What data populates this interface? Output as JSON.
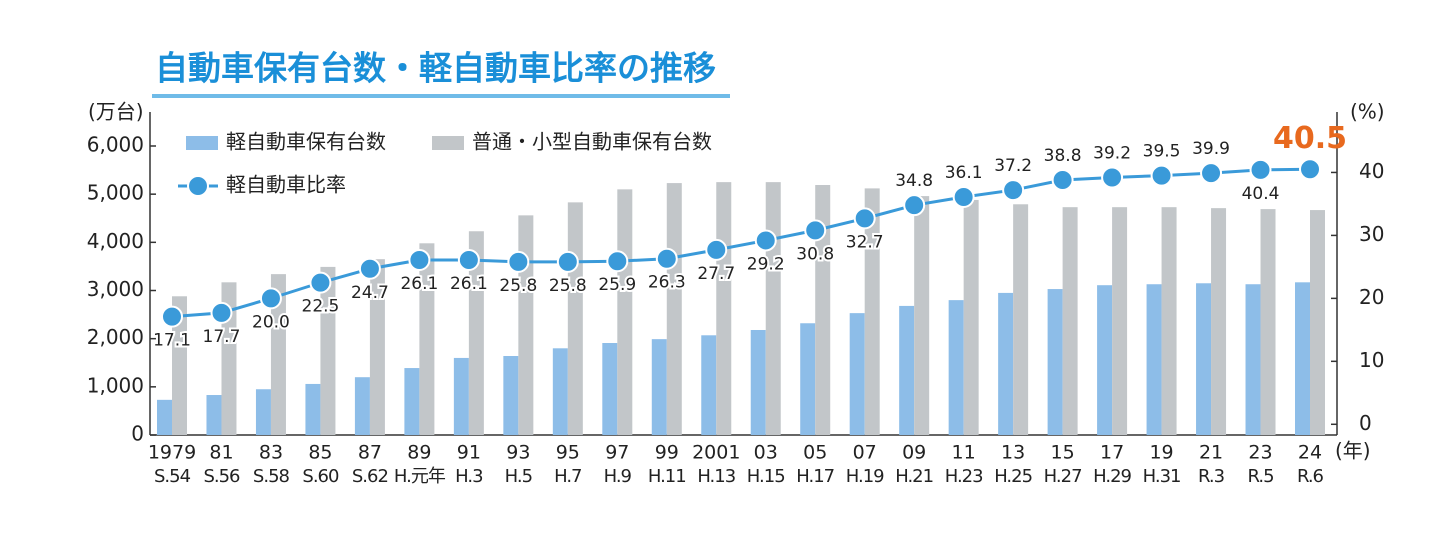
{
  "chart_data": {
    "type": "bar_line",
    "title": "自動車保有台数・軽自動車比率の推移",
    "y_unit": "(万台)",
    "y2_unit": "(%)",
    "x_unit": "(年)",
    "categories": [
      "1979",
      "81",
      "83",
      "85",
      "87",
      "89",
      "91",
      "93",
      "95",
      "97",
      "99",
      "2001",
      "03",
      "05",
      "07",
      "09",
      "11",
      "13",
      "15",
      "17",
      "19",
      "21",
      "23",
      "24"
    ],
    "era_labels": [
      "S.54",
      "S.56",
      "S.58",
      "S.60",
      "S.62",
      "H.元年",
      "H.3",
      "H.5",
      "H.7",
      "H.9",
      "H.11",
      "H.13",
      "H.15",
      "H.17",
      "H.19",
      "H.21",
      "H.23",
      "H.25",
      "H.27",
      "H.29",
      "H.31",
      "R.3",
      "R.5",
      "R.6"
    ],
    "series": [
      {
        "name": "軽自動車保有台数",
        "color": "#8dbde8",
        "kind": "bar",
        "values": [
          730,
          830,
          950,
          1060,
          1200,
          1390,
          1600,
          1640,
          1800,
          1910,
          1990,
          2070,
          2180,
          2320,
          2530,
          2680,
          2800,
          2950,
          3030,
          3110,
          3130,
          3150,
          3130,
          3170
        ]
      },
      {
        "name": "普通・小型自動車保有台数",
        "color": "#c2c6c9",
        "kind": "bar",
        "values": [
          2880,
          3170,
          3340,
          3490,
          3650,
          3980,
          4230,
          4560,
          4830,
          5100,
          5230,
          5250,
          5250,
          5190,
          5120,
          4960,
          4880,
          4790,
          4730,
          4730,
          4730,
          4710,
          4690,
          4670
        ]
      },
      {
        "name": "軽自動車比率",
        "color": "#3a9ad9",
        "kind": "line",
        "axis": "y2",
        "highlight_color": "#e8691e",
        "values": [
          17.1,
          17.7,
          20.0,
          22.5,
          24.7,
          26.1,
          26.1,
          25.8,
          25.8,
          25.9,
          26.3,
          27.7,
          29.2,
          30.8,
          32.7,
          34.8,
          36.1,
          37.2,
          38.8,
          39.2,
          39.5,
          39.9,
          40.4,
          40.5
        ],
        "value_labels": [
          "17.1",
          "17.7",
          "20.0",
          "22.5",
          "24.7",
          "26.1",
          "26.1",
          "25.8",
          "25.8",
          "25.9",
          "26.3",
          "27.7",
          "29.2",
          "30.8",
          "32.7",
          "34.8",
          "36.1",
          "37.2",
          "38.8",
          "39.2",
          "39.5",
          "39.9",
          "40.4",
          "40.5"
        ]
      }
    ],
    "ylim": [
      0,
      6000
    ],
    "yticks": [
      0,
      {
        "value": 1000,
        "label": "1,000"
      },
      {
        "value": 2000,
        "label": "2,000"
      },
      {
        "value": 3000,
        "label": "3,000"
      },
      {
        "value": 4000,
        "label": "4,000"
      },
      {
        "value": 5000,
        "label": "5,000"
      },
      {
        "value": 6000,
        "label": "6,000"
      }
    ],
    "y2lim": [
      -1.7,
      44.2
    ],
    "y2ticks": [
      0,
      10,
      20,
      30,
      40
    ]
  }
}
